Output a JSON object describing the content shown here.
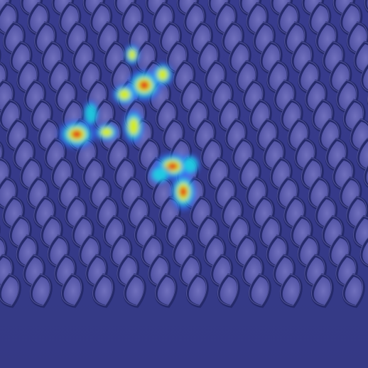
{
  "image": {
    "kind": "heatmap-overlay-on-photo",
    "subject": "woven-mesh-texture",
    "colors": {
      "base": "#3a3f8c",
      "cell_light": "#7f7fc9",
      "cell_mid": "#5d5fae",
      "wire_dark": "#242a66",
      "wire_highlight": "#9b9be0",
      "heat_low": "#2f6bff",
      "heat_mid": "#19e0e0",
      "heat_warm": "#e8f000",
      "heat_hot": "#e02020"
    },
    "heatmap": {
      "colormap": "jet",
      "hotspots": [
        {
          "id": "spot-1",
          "intensity": 1.0
        },
        {
          "id": "spot-2",
          "intensity": 0.95
        },
        {
          "id": "spot-3",
          "intensity": 0.8
        },
        {
          "id": "spot-4",
          "intensity": 0.75
        },
        {
          "id": "spot-5",
          "intensity": 0.7
        },
        {
          "id": "spot-6",
          "intensity": 0.65
        },
        {
          "id": "spot-7",
          "intensity": 0.6
        },
        {
          "id": "spot-8",
          "intensity": 0.55
        },
        {
          "id": "spot-9",
          "intensity": 0.5
        },
        {
          "id": "spot-10",
          "intensity": 0.45
        },
        {
          "id": "spot-11",
          "intensity": 0.4
        },
        {
          "id": "spot-12",
          "intensity": 0.35
        }
      ]
    }
  }
}
